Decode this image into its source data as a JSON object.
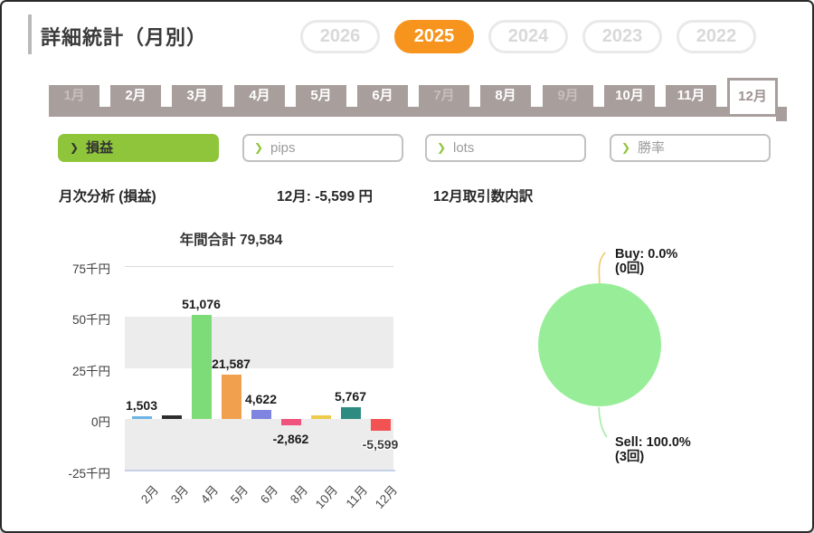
{
  "app": {
    "title": "詳細統計（月別）"
  },
  "years": {
    "items": [
      {
        "label": "2026",
        "selected": false
      },
      {
        "label": "2025",
        "selected": true
      },
      {
        "label": "2024",
        "selected": false
      },
      {
        "label": "2023",
        "selected": false
      },
      {
        "label": "2022",
        "selected": false
      }
    ]
  },
  "months": {
    "items": [
      {
        "label": "1月",
        "state": "disabled"
      },
      {
        "label": "2月",
        "state": "normal"
      },
      {
        "label": "3月",
        "state": "normal"
      },
      {
        "label": "4月",
        "state": "normal"
      },
      {
        "label": "5月",
        "state": "normal"
      },
      {
        "label": "6月",
        "state": "normal"
      },
      {
        "label": "7月",
        "state": "disabled"
      },
      {
        "label": "8月",
        "state": "normal"
      },
      {
        "label": "9月",
        "state": "disabled"
      },
      {
        "label": "10月",
        "state": "normal"
      },
      {
        "label": "11月",
        "state": "normal"
      },
      {
        "label": "12月",
        "state": "selected"
      }
    ]
  },
  "filters": {
    "chevron": "❯",
    "items": [
      {
        "label": "損益",
        "active": true
      },
      {
        "label": "pips",
        "active": false
      },
      {
        "label": "lots",
        "active": false
      },
      {
        "label": "勝率",
        "active": false
      }
    ]
  },
  "headings": {
    "monthly_analysis": "月次分析 (損益)",
    "selected_month_value": "12月: -5,599 円",
    "trade_breakdown": "12月取引数内訳"
  },
  "chart_data": [
    {
      "type": "bar",
      "title": "年間合計 79,584",
      "annual_total": 79584,
      "categories": [
        "2月",
        "3月",
        "4月",
        "5月",
        "6月",
        "8月",
        "10月",
        "11月",
        "12月"
      ],
      "values": [
        1503,
        1700,
        51076,
        21587,
        4622,
        -2862,
        1790,
        5767,
        -5599
      ],
      "value_labels": [
        "1,503",
        "",
        "51,076",
        "21,587",
        "4,622",
        "-2,862",
        "",
        "5,767",
        "-5,599"
      ],
      "bar_colors": [
        "#6fb4e6",
        "#2e2e2e",
        "#7edc78",
        "#f1a14e",
        "#7f84e0",
        "#f0527e",
        "#eecb4a",
        "#2e8b82",
        "#f25252"
      ],
      "y_ticks": [
        {
          "label": "75千円",
          "value": 75000
        },
        {
          "label": "50千円",
          "value": 50000
        },
        {
          "label": "25千円",
          "value": 25000
        },
        {
          "label": "0円",
          "value": 0
        },
        {
          "label": "-25千円",
          "value": -25000
        }
      ],
      "ylim": [
        -25000,
        75000
      ],
      "grid": "alternating-bands",
      "legend": "none"
    },
    {
      "type": "pie",
      "title": "12月取引数内訳",
      "slices": [
        {
          "name": "Buy",
          "percent": 0.0,
          "label": "Buy: 0.0%",
          "count_label": "(0回)",
          "leader_color": "#f0c86a"
        },
        {
          "name": "Sell",
          "percent": 100.0,
          "label": "Sell: 100.0%",
          "count_label": "(3回)",
          "leader_color": "#a5eba5"
        }
      ],
      "pie_color": "#98ee98",
      "legend": "outside-labels"
    }
  ],
  "colors": {
    "accent_orange": "#f7941e",
    "accent_green": "#8ec53a",
    "tab_taupe": "#a89e9b",
    "band_gray": "#ececec",
    "baseline_blue": "#c6d1e6",
    "pie_green": "#98ee98"
  }
}
